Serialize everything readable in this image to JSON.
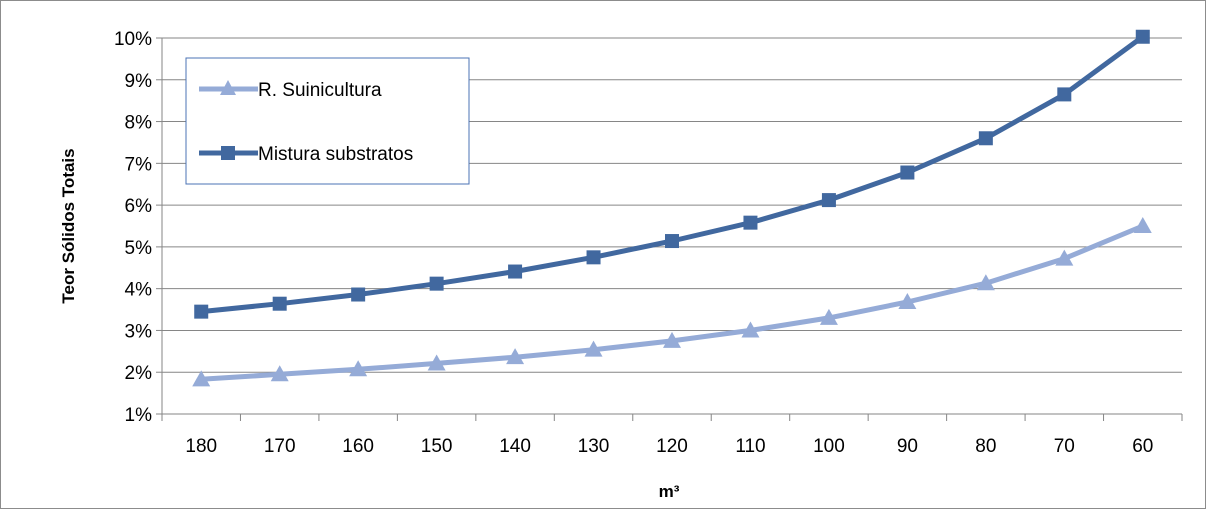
{
  "chart_data": {
    "type": "line",
    "title": "",
    "xlabel": "m³",
    "ylabel": "Teor  Sólidos Totais",
    "categories": [
      "180",
      "170",
      "160",
      "150",
      "140",
      "130",
      "120",
      "110",
      "100",
      "90",
      "80",
      "70",
      "60"
    ],
    "ylim": [
      0.01,
      0.1
    ],
    "yticks": [
      "1%",
      "2%",
      "3%",
      "4%",
      "5%",
      "6%",
      "7%",
      "8%",
      "9%",
      "10%"
    ],
    "grid": "horizontal",
    "legend_position": "top-left",
    "series": [
      {
        "name": "R. Suinicultura",
        "marker": "triangle",
        "color": "#95abd7",
        "values": [
          0.0183,
          0.0195,
          0.0207,
          0.0221,
          0.0236,
          0.0254,
          0.0275,
          0.03,
          0.033,
          0.0368,
          0.0413,
          0.0472,
          0.055
        ]
      },
      {
        "name": "Mistura substratos",
        "marker": "square",
        "color": "#41689f",
        "values": [
          0.0345,
          0.0364,
          0.0386,
          0.0412,
          0.0441,
          0.0475,
          0.0514,
          0.0558,
          0.0612,
          0.0678,
          0.076,
          0.0865,
          0.1003
        ]
      }
    ]
  }
}
